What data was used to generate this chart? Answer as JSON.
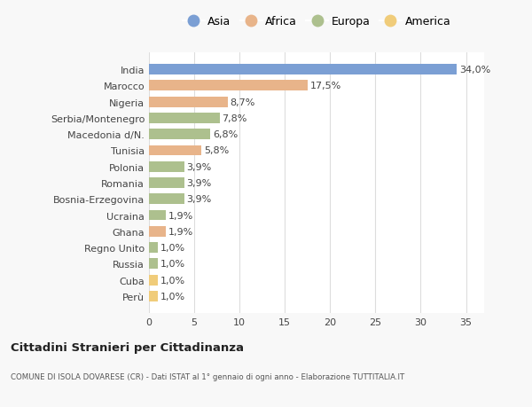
{
  "countries": [
    "India",
    "Marocco",
    "Nigeria",
    "Serbia/Montenegro",
    "Macedonia d/N.",
    "Tunisia",
    "Polonia",
    "Romania",
    "Bosnia-Erzegovina",
    "Ucraina",
    "Ghana",
    "Regno Unito",
    "Russia",
    "Cuba",
    "Perù"
  ],
  "values": [
    34.0,
    17.5,
    8.7,
    7.8,
    6.8,
    5.8,
    3.9,
    3.9,
    3.9,
    1.9,
    1.9,
    1.0,
    1.0,
    1.0,
    1.0
  ],
  "labels": [
    "34,0%",
    "17,5%",
    "8,7%",
    "7,8%",
    "6,8%",
    "5,8%",
    "3,9%",
    "3,9%",
    "3,9%",
    "1,9%",
    "1,9%",
    "1,0%",
    "1,0%",
    "1,0%",
    "1,0%"
  ],
  "continents": [
    "Asia",
    "Africa",
    "Africa",
    "Europa",
    "Europa",
    "Africa",
    "Europa",
    "Europa",
    "Europa",
    "Europa",
    "Africa",
    "Europa",
    "Europa",
    "America",
    "America"
  ],
  "colors": {
    "Asia": "#7b9fd4",
    "Africa": "#e8b48a",
    "Europa": "#adc08e",
    "America": "#f0cc7a"
  },
  "legend_order": [
    "Asia",
    "Africa",
    "Europa",
    "America"
  ],
  "title": "Cittadini Stranieri per Cittadinanza",
  "subtitle": "COMUNE DI ISOLA DOVARESE (CR) - Dati ISTAT al 1° gennaio di ogni anno - Elaborazione TUTTITALIA.IT",
  "xlim": [
    0,
    37
  ],
  "xticks": [
    0,
    5,
    10,
    15,
    20,
    25,
    30,
    35
  ],
  "background_color": "#f8f8f8",
  "plot_bg_color": "#ffffff",
  "label_fontsize": 8,
  "ytick_fontsize": 8,
  "xtick_fontsize": 8,
  "bar_height": 0.65
}
